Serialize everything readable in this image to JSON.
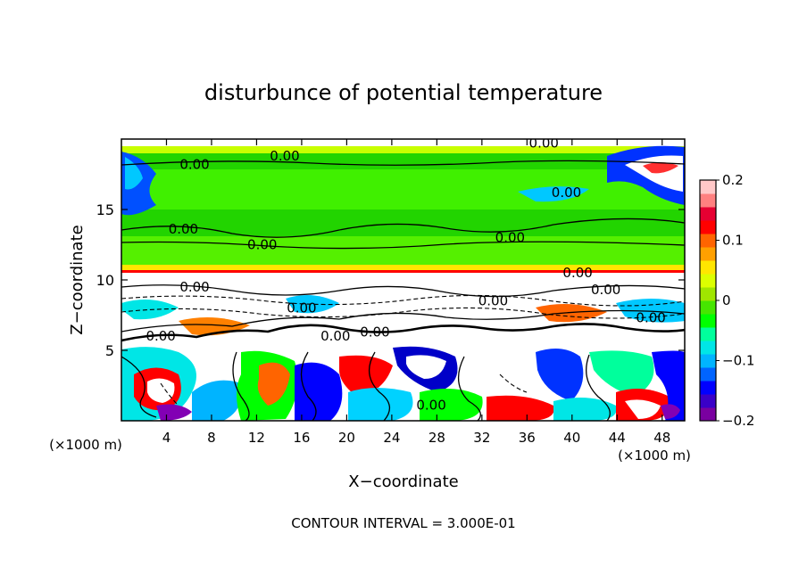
{
  "chart_data": {
    "type": "heatmap",
    "title": "disturbunce of potential temperature",
    "xlabel": "X−coordinate",
    "ylabel": "Z−coordinate",
    "x_unit": "(×1000 m)",
    "y_unit": "(×1000 m)",
    "xlim": [
      0,
      50
    ],
    "ylim": [
      0,
      20
    ],
    "x_ticks": [
      "4",
      "8",
      "12",
      "16",
      "20",
      "24",
      "28",
      "32",
      "36",
      "40",
      "44",
      "48"
    ],
    "y_ticks": [
      "5",
      "10",
      "15"
    ],
    "x_tick_values": [
      4,
      8,
      12,
      16,
      20,
      24,
      28,
      32,
      36,
      40,
      44,
      48
    ],
    "y_tick_values": [
      5,
      10,
      15
    ],
    "colorbar": {
      "min": -0.2,
      "max": 0.2,
      "labels": [
        "0.2",
        "0.1",
        "0",
        "−0.1",
        "−0.2"
      ],
      "label_values": [
        0.2,
        0.1,
        0,
        -0.1,
        -0.2
      ],
      "colors": [
        "#7a00a0",
        "#3a00c8",
        "#0000ff",
        "#0064ff",
        "#00b4ff",
        "#00e6e6",
        "#00ff9c",
        "#00ff00",
        "#46e600",
        "#a0e600",
        "#dcff00",
        "#ffe600",
        "#ffa000",
        "#ff6400",
        "#ff0000",
        "#e60032",
        "#ff8080",
        "#ffc8c8"
      ]
    },
    "contour_interval_text": "CONTOUR INTERVAL = 3.000E-01",
    "contour_labels": [
      {
        "text": "0.00",
        "x": 6.5,
        "z": 18.2
      },
      {
        "text": "0.00",
        "x": 14.5,
        "z": 18.8
      },
      {
        "text": "0.00",
        "x": 37.5,
        "z": 19.7
      },
      {
        "text": "0.00",
        "x": 39.5,
        "z": 16.2
      },
      {
        "text": "0.00",
        "x": 5.5,
        "z": 13.6
      },
      {
        "text": "0.00",
        "x": 12.5,
        "z": 12.5
      },
      {
        "text": "0.00",
        "x": 34.5,
        "z": 13.0
      },
      {
        "text": "0.00",
        "x": 40.5,
        "z": 10.5
      },
      {
        "text": "0.00",
        "x": 6.5,
        "z": 9.5
      },
      {
        "text": "0.00",
        "x": 43.0,
        "z": 9.3
      },
      {
        "text": "0.00",
        "x": 16.0,
        "z": 8.0
      },
      {
        "text": "0.00",
        "x": 33.0,
        "z": 8.5
      },
      {
        "text": "0.00",
        "x": 3.5,
        "z": 6.0
      },
      {
        "text": "0.00",
        "x": 19.0,
        "z": 6.0
      },
      {
        "text": "0.00",
        "x": 22.5,
        "z": 6.3
      },
      {
        "text": "0.00",
        "x": 47.0,
        "z": 7.3
      },
      {
        "text": "0.00",
        "x": 27.5,
        "z": 1.1
      }
    ]
  }
}
